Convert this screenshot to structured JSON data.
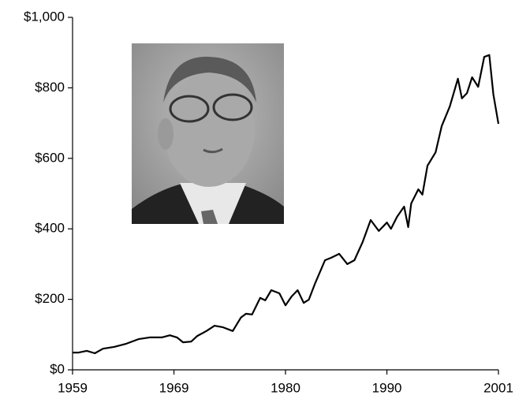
{
  "chart_data": {
    "type": "line",
    "x": [
      1959,
      1959.6,
      1960.4,
      1961.2,
      1962,
      1963.1,
      1964.3,
      1965.5,
      1966.6,
      1967.8,
      1968.6,
      1969.3,
      1969.9,
      1970.7,
      1971.3,
      1972.2,
      1973,
      1973.8,
      1974.8,
      1975.6,
      1976.1,
      1976.7,
      1977.5,
      1978,
      1978.6,
      1979.4,
      1980,
      1980.6,
      1981.2,
      1981.8,
      1982.3,
      1982.9,
      1983.9,
      1984.5,
      1985.3,
      1986.1,
      1986.8,
      1987.6,
      1988.4,
      1989.2,
      1990,
      1990.4,
      1991,
      1991.7,
      1992.1,
      1992.4,
      1993.1,
      1993.5,
      1994,
      1994.8,
      1995.4,
      1996.2,
      1997,
      1997.4,
      1997.9,
      1998.4,
      1999,
      1999.6,
      2000.1,
      2000.5,
      2001
    ],
    "series": [
      {
        "color": "#000000",
        "values": [
          49,
          49,
          54,
          47,
          60,
          65,
          74,
          87,
          92,
          92,
          98,
          92,
          78,
          80,
          96,
          110,
          125,
          121,
          110,
          148,
          159,
          157,
          204,
          197,
          226,
          217,
          183,
          208,
          226,
          190,
          199,
          244,
          311,
          318,
          329,
          300,
          311,
          362,
          425,
          394,
          418,
          400,
          434,
          463,
          405,
          472,
          512,
          497,
          579,
          617,
          691,
          747,
          826,
          770,
          785,
          830,
          803,
          888,
          893,
          781,
          698
        ]
      }
    ],
    "xlim": [
      1959,
      2001
    ],
    "xticks": [
      1959,
      1969,
      1980,
      1990,
      2001
    ],
    "ylim": [
      0,
      1000
    ],
    "yticks": [
      {
        "value": 0,
        "label": "$0"
      },
      {
        "value": 200,
        "label": "$200"
      },
      {
        "value": 400,
        "label": "$400"
      },
      {
        "value": 600,
        "label": "$600"
      },
      {
        "value": 800,
        "label": "$800"
      },
      {
        "value": 1000,
        "label": "$1,000"
      }
    ]
  }
}
